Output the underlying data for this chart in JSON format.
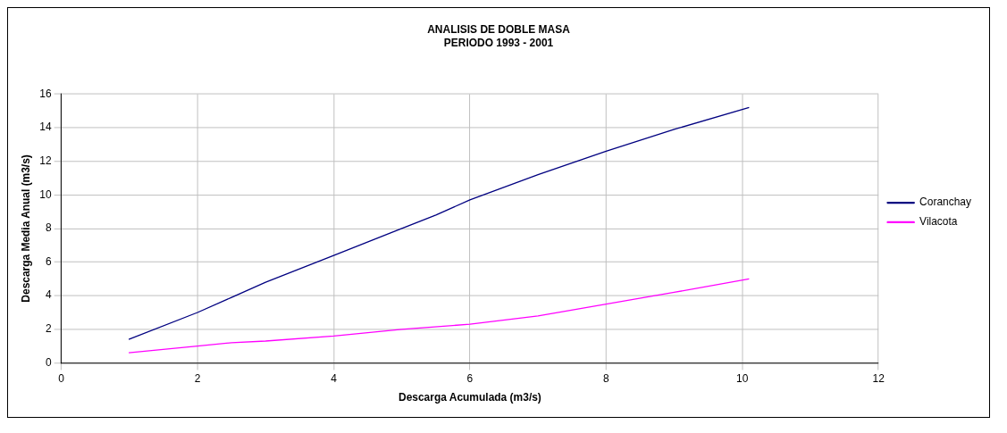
{
  "chart_data": {
    "type": "line",
    "title": "ANALISIS DE DOBLE MASA",
    "subtitle": "PERIODO 1993 - 2001",
    "xlabel": "Descarga Acumulada (m3/s)",
    "ylabel": "Descarga Media Anual (m3/s)",
    "series": [
      {
        "name": "Coranchay",
        "color": "#000080",
        "x": [
          0.99,
          2,
          2.5,
          3,
          4,
          5,
          5.5,
          6,
          7,
          8,
          9,
          10.1
        ],
        "values": [
          1.4,
          3.0,
          3.9,
          4.8,
          6.4,
          8.0,
          8.8,
          9.7,
          11.2,
          12.6,
          13.9,
          15.2
        ]
      },
      {
        "name": "Vilacota",
        "color": "#ff00ff",
        "x": [
          0.99,
          2,
          2.5,
          3,
          4,
          5,
          6,
          7,
          8,
          9,
          10.1
        ],
        "values": [
          0.6,
          1.0,
          1.2,
          1.3,
          1.6,
          2.0,
          2.3,
          2.8,
          3.5,
          4.2,
          5.0
        ]
      }
    ],
    "xlim": [
      0,
      12
    ],
    "xticks": [
      0,
      2,
      4,
      6,
      8,
      10,
      12
    ],
    "ylim": [
      0,
      16
    ],
    "yticks": [
      0,
      2,
      4,
      6,
      8,
      10,
      12,
      14,
      16
    ],
    "grid": true,
    "legend": "right",
    "marker": "none",
    "line_style": "solid"
  }
}
